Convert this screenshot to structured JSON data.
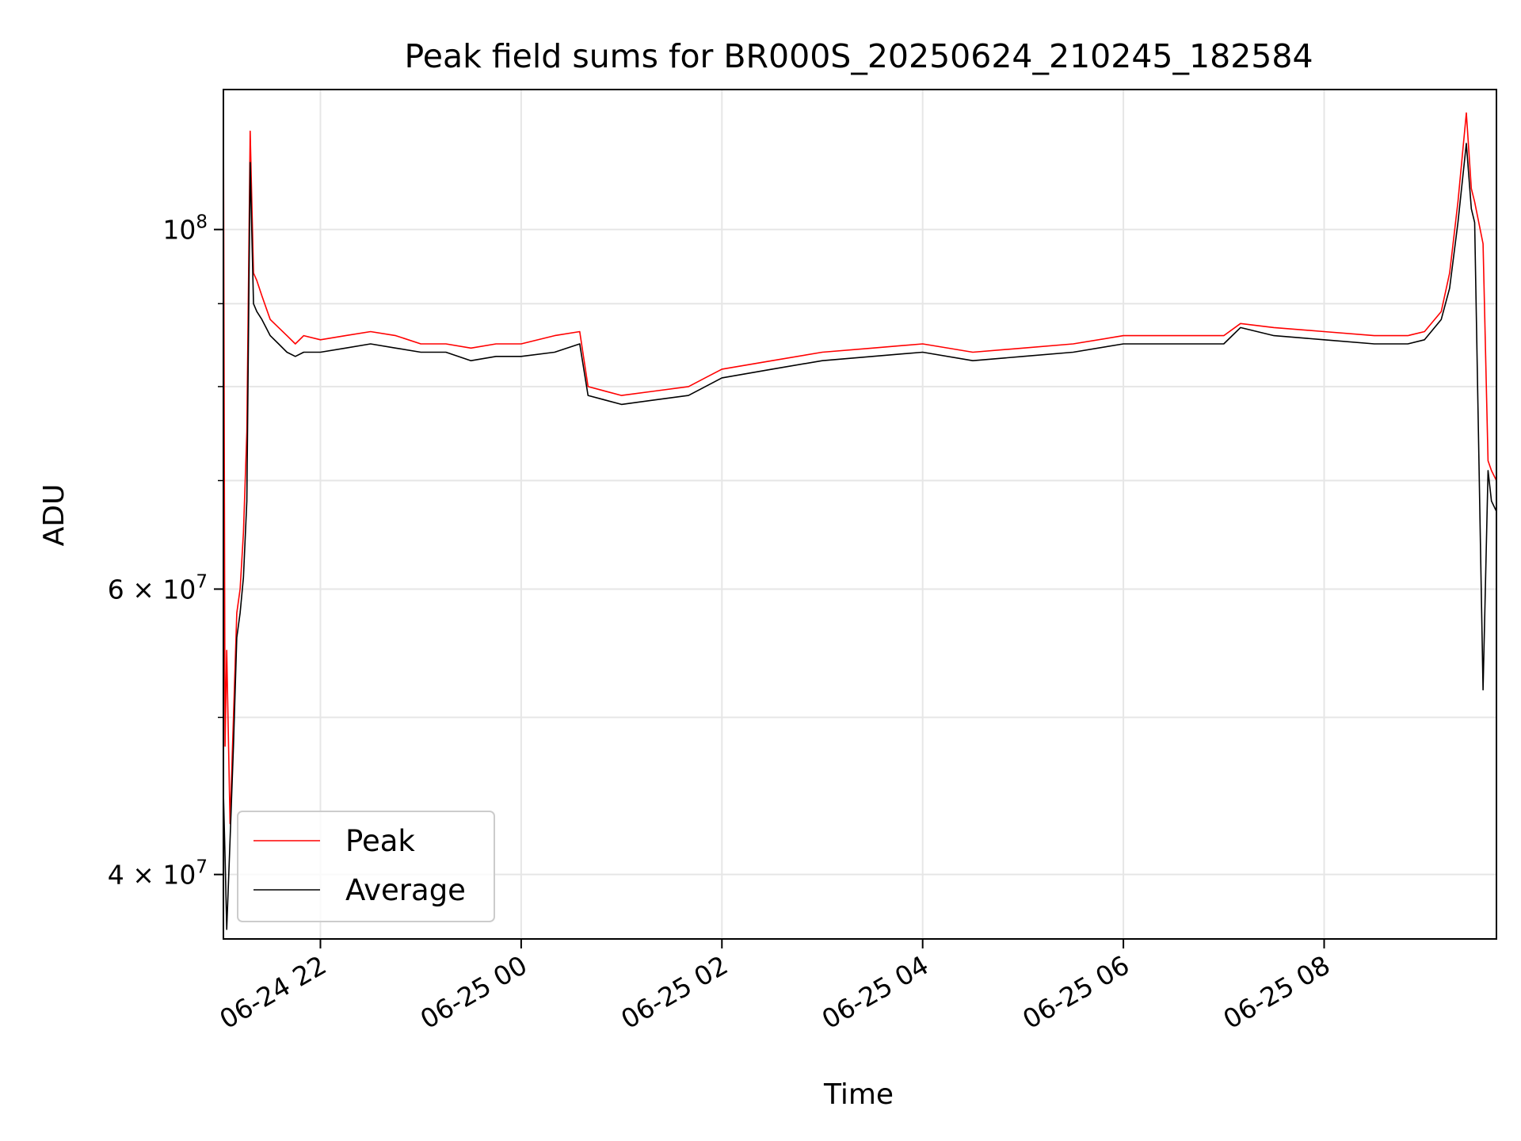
{
  "chart_data": {
    "type": "line",
    "title": "Peak field sums for BR000S_20250624_210245_182584",
    "xlabel": "Time",
    "ylabel": "ADU",
    "y_scale": "log",
    "ylim": [
      36500000,
      122000000
    ],
    "xlim": [
      "2025-06-24 21:02",
      "2025-06-25 09:43"
    ],
    "grid": true,
    "legend_position": "lower-left",
    "x_ticks": [
      {
        "value": "2025-06-24 22:00",
        "label": "06-24 22"
      },
      {
        "value": "2025-06-25 00:00",
        "label": "06-25 00"
      },
      {
        "value": "2025-06-25 02:00",
        "label": "06-25 02"
      },
      {
        "value": "2025-06-25 04:00",
        "label": "06-25 04"
      },
      {
        "value": "2025-06-25 06:00",
        "label": "06-25 06"
      },
      {
        "value": "2025-06-25 08:00",
        "label": "06-25 08"
      }
    ],
    "y_ticks_major": [
      {
        "value": 40000000,
        "mantissa": "4",
        "exponent": "7"
      },
      {
        "value": 60000000,
        "mantissa": "6",
        "exponent": "7"
      },
      {
        "value": 100000000,
        "mantissa": "",
        "exponent": "8"
      }
    ],
    "y_ticks_minor": [
      50000000,
      70000000,
      80000000,
      90000000
    ],
    "series": [
      {
        "name": "Peak",
        "color": "#ff0000",
        "x": [
          "2025-06-24 21:02",
          "2025-06-24 21:03",
          "2025-06-24 21:04",
          "2025-06-24 21:06",
          "2025-06-24 21:08",
          "2025-06-24 21:10",
          "2025-06-24 21:12",
          "2025-06-24 21:14",
          "2025-06-24 21:16",
          "2025-06-24 21:18",
          "2025-06-24 21:20",
          "2025-06-24 21:22",
          "2025-06-24 21:25",
          "2025-06-24 21:30",
          "2025-06-24 21:35",
          "2025-06-24 21:40",
          "2025-06-24 21:45",
          "2025-06-24 21:50",
          "2025-06-24 22:00",
          "2025-06-24 22:15",
          "2025-06-24 22:30",
          "2025-06-24 22:45",
          "2025-06-24 23:00",
          "2025-06-24 23:15",
          "2025-06-24 23:30",
          "2025-06-24 23:45",
          "2025-06-25 00:00",
          "2025-06-25 00:20",
          "2025-06-25 00:35",
          "2025-06-25 00:40",
          "2025-06-25 01:00",
          "2025-06-25 01:20",
          "2025-06-25 01:40",
          "2025-06-25 02:00",
          "2025-06-25 02:30",
          "2025-06-25 03:00",
          "2025-06-25 03:30",
          "2025-06-25 04:00",
          "2025-06-25 04:30",
          "2025-06-25 05:00",
          "2025-06-25 05:30",
          "2025-06-25 06:00",
          "2025-06-25 06:30",
          "2025-06-25 07:00",
          "2025-06-25 07:10",
          "2025-06-25 07:30",
          "2025-06-25 08:00",
          "2025-06-25 08:30",
          "2025-06-25 08:50",
          "2025-06-25 09:00",
          "2025-06-25 09:10",
          "2025-06-25 09:15",
          "2025-06-25 09:20",
          "2025-06-25 09:25",
          "2025-06-25 09:28",
          "2025-06-25 09:30",
          "2025-06-25 09:35",
          "2025-06-25 09:38",
          "2025-06-25 09:40",
          "2025-06-25 09:43"
        ],
        "y": [
          121000000,
          48000000,
          55000000,
          43000000,
          50000000,
          58000000,
          60000000,
          65000000,
          75000000,
          115000000,
          94000000,
          93000000,
          91000000,
          88000000,
          87000000,
          86000000,
          85000000,
          86000000,
          85500000,
          86000000,
          86500000,
          86000000,
          85000000,
          85000000,
          84500000,
          85000000,
          85000000,
          86000000,
          86500000,
          80000000,
          79000000,
          79500000,
          80000000,
          82000000,
          83000000,
          84000000,
          84500000,
          85000000,
          84000000,
          84500000,
          85000000,
          86000000,
          86000000,
          86000000,
          87500000,
          87000000,
          86500000,
          86000000,
          86000000,
          86500000,
          89000000,
          94000000,
          104000000,
          118000000,
          106000000,
          104000000,
          98000000,
          72000000,
          71000000,
          70000000
        ]
      },
      {
        "name": "Average",
        "color": "#000000",
        "x": [
          "2025-06-24 21:02",
          "2025-06-24 21:03",
          "2025-06-24 21:04",
          "2025-06-24 21:06",
          "2025-06-24 21:08",
          "2025-06-24 21:10",
          "2025-06-24 21:12",
          "2025-06-24 21:14",
          "2025-06-24 21:16",
          "2025-06-24 21:18",
          "2025-06-24 21:20",
          "2025-06-24 21:22",
          "2025-06-24 21:25",
          "2025-06-24 21:30",
          "2025-06-24 21:35",
          "2025-06-24 21:40",
          "2025-06-24 21:45",
          "2025-06-24 21:50",
          "2025-06-24 22:00",
          "2025-06-24 22:15",
          "2025-06-24 22:30",
          "2025-06-24 22:45",
          "2025-06-24 23:00",
          "2025-06-24 23:15",
          "2025-06-24 23:30",
          "2025-06-24 23:45",
          "2025-06-25 00:00",
          "2025-06-25 00:20",
          "2025-06-25 00:35",
          "2025-06-25 00:40",
          "2025-06-25 01:00",
          "2025-06-25 01:20",
          "2025-06-25 01:40",
          "2025-06-25 02:00",
          "2025-06-25 02:30",
          "2025-06-25 03:00",
          "2025-06-25 03:30",
          "2025-06-25 04:00",
          "2025-06-25 04:30",
          "2025-06-25 05:00",
          "2025-06-25 05:30",
          "2025-06-25 06:00",
          "2025-06-25 06:30",
          "2025-06-25 07:00",
          "2025-06-25 07:10",
          "2025-06-25 07:30",
          "2025-06-25 08:00",
          "2025-06-25 08:30",
          "2025-06-25 08:50",
          "2025-06-25 09:00",
          "2025-06-25 09:10",
          "2025-06-25 09:15",
          "2025-06-25 09:20",
          "2025-06-25 09:25",
          "2025-06-25 09:28",
          "2025-06-25 09:30",
          "2025-06-25 09:35",
          "2025-06-25 09:38",
          "2025-06-25 09:40",
          "2025-06-25 09:43"
        ],
        "y": [
          45000000,
          41000000,
          37000000,
          42000000,
          48000000,
          56000000,
          58000000,
          61000000,
          68000000,
          110000000,
          90000000,
          89000000,
          88000000,
          86000000,
          85000000,
          84000000,
          83500000,
          84000000,
          84000000,
          84500000,
          85000000,
          84500000,
          84000000,
          84000000,
          83000000,
          83500000,
          83500000,
          84000000,
          85000000,
          79000000,
          78000000,
          78500000,
          79000000,
          81000000,
          82000000,
          83000000,
          83500000,
          84000000,
          83000000,
          83500000,
          84000000,
          85000000,
          85000000,
          85000000,
          87000000,
          86000000,
          85500000,
          85000000,
          85000000,
          85500000,
          88000000,
          92000000,
          101000000,
          113000000,
          103000000,
          101000000,
          52000000,
          71000000,
          68000000,
          67000000
        ]
      }
    ]
  }
}
